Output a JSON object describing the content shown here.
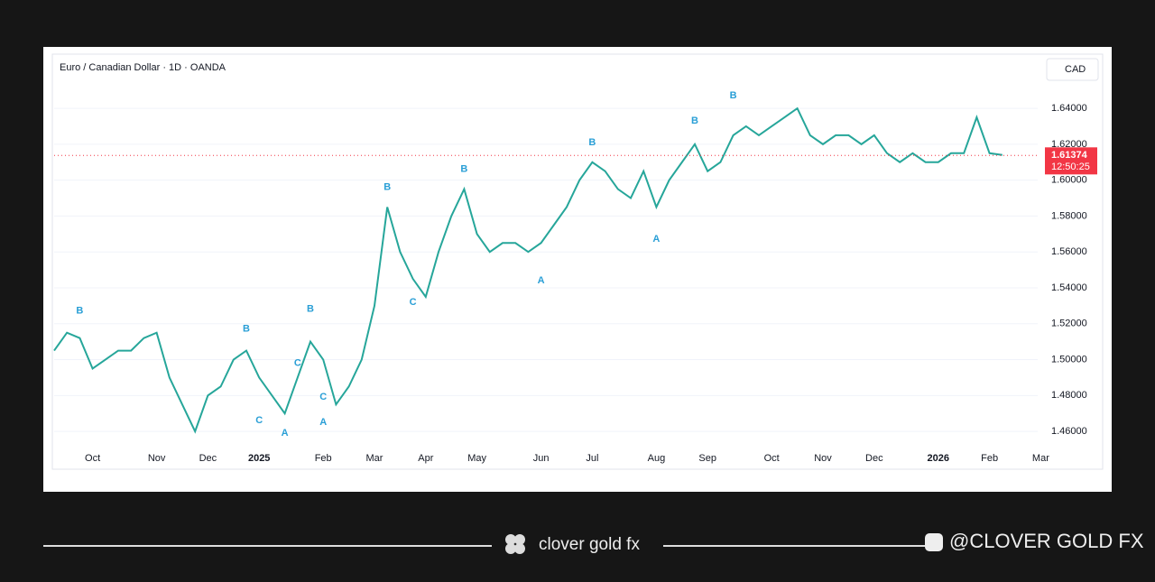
{
  "chart_data": {
    "type": "line",
    "title": "Euro / Canadian Dollar · 1D · OANDA",
    "y_axis_unit": "CAD",
    "categories": [
      null,
      null,
      null,
      "Oct",
      null,
      null,
      null,
      null,
      "Nov",
      null,
      null,
      null,
      "Dec",
      null,
      null,
      null,
      "2025",
      null,
      null,
      null,
      null,
      "Feb",
      null,
      null,
      null,
      "Mar",
      null,
      null,
      null,
      "Apr",
      null,
      null,
      null,
      "May",
      null,
      null,
      null,
      null,
      "Jun",
      null,
      null,
      null,
      "Jul",
      null,
      null,
      null,
      null,
      "Aug",
      null,
      null,
      null,
      "Sep",
      null,
      null,
      null,
      null,
      "Oct",
      null,
      null,
      null,
      "Nov",
      null,
      null,
      null,
      "Dec",
      null,
      null,
      null,
      null,
      "2026",
      null,
      null,
      null,
      "Feb",
      null,
      null,
      null,
      "Mar"
    ],
    "series": [
      {
        "color": "#26a69a",
        "values": [
          1.505,
          1.515,
          1.512,
          1.495,
          1.5,
          1.505,
          1.505,
          1.512,
          1.515,
          1.49,
          1.475,
          1.46,
          1.48,
          1.485,
          1.5,
          1.505,
          1.49,
          1.48,
          1.47,
          1.49,
          1.51,
          1.5,
          1.475,
          1.485,
          1.5,
          1.53,
          1.585,
          1.56,
          1.545,
          1.535,
          1.56,
          1.58,
          1.595,
          1.57,
          1.56,
          1.565,
          1.565,
          1.56,
          1.565,
          1.575,
          1.585,
          1.6,
          1.61,
          1.605,
          1.595,
          1.59,
          1.605,
          1.585,
          1.6,
          1.61,
          1.62,
          1.605,
          1.61,
          1.625,
          1.63,
          1.625,
          1.63,
          1.635,
          1.64,
          1.625,
          1.62,
          1.625,
          1.625,
          1.62,
          1.625,
          1.615,
          1.61,
          1.615,
          1.61,
          1.61,
          1.615,
          1.615,
          1.635,
          1.615,
          1.614,
          null,
          null,
          null
        ]
      }
    ],
    "ylim": [
      1.4515,
      1.6692
    ],
    "yticks": [
      {
        "value": 1.46,
        "label": "1.46000"
      },
      {
        "value": 1.48,
        "label": "1.48000"
      },
      {
        "value": 1.5,
        "label": "1.50000"
      },
      {
        "value": 1.52,
        "label": "1.52000"
      },
      {
        "value": 1.54,
        "label": "1.54000"
      },
      {
        "value": 1.56,
        "label": "1.56000"
      },
      {
        "value": 1.58,
        "label": "1.58000"
      },
      {
        "value": 1.6,
        "label": "1.60000"
      },
      {
        "value": 1.62,
        "label": "1.62000"
      },
      {
        "value": 1.64,
        "label": "1.64000"
      }
    ],
    "last_price": {
      "value": 1.61374,
      "label": "1.61374"
    },
    "countdown": "12:50:25",
    "annotations": [
      {
        "text": "B",
        "x": 2,
        "y": 1.527
      },
      {
        "text": "B",
        "x": 15,
        "y": 1.517
      },
      {
        "text": "B",
        "x": 20,
        "y": 1.528
      },
      {
        "text": "B",
        "x": 26,
        "y": 1.596
      },
      {
        "text": "B",
        "x": 32,
        "y": 1.606
      },
      {
        "text": "B",
        "x": 42,
        "y": 1.621
      },
      {
        "text": "B",
        "x": 50,
        "y": 1.633
      },
      {
        "text": "B",
        "x": 53,
        "y": 1.647
      },
      {
        "text": "A",
        "x": 47,
        "y": 1.567
      },
      {
        "text": "A",
        "x": 38,
        "y": 1.544
      },
      {
        "text": "A",
        "x": 18,
        "y": 1.459
      },
      {
        "text": "A",
        "x": 21,
        "y": 1.465
      },
      {
        "text": "C",
        "x": 19,
        "y": 1.498
      },
      {
        "text": "C",
        "x": 21,
        "y": 1.479
      },
      {
        "text": "C",
        "x": 16,
        "y": 1.466
      },
      {
        "text": "C",
        "x": 28,
        "y": 1.532
      }
    ]
  },
  "footer": {
    "brand": "clover gold fx",
    "handle": "@CLOVER GOLD FX"
  }
}
